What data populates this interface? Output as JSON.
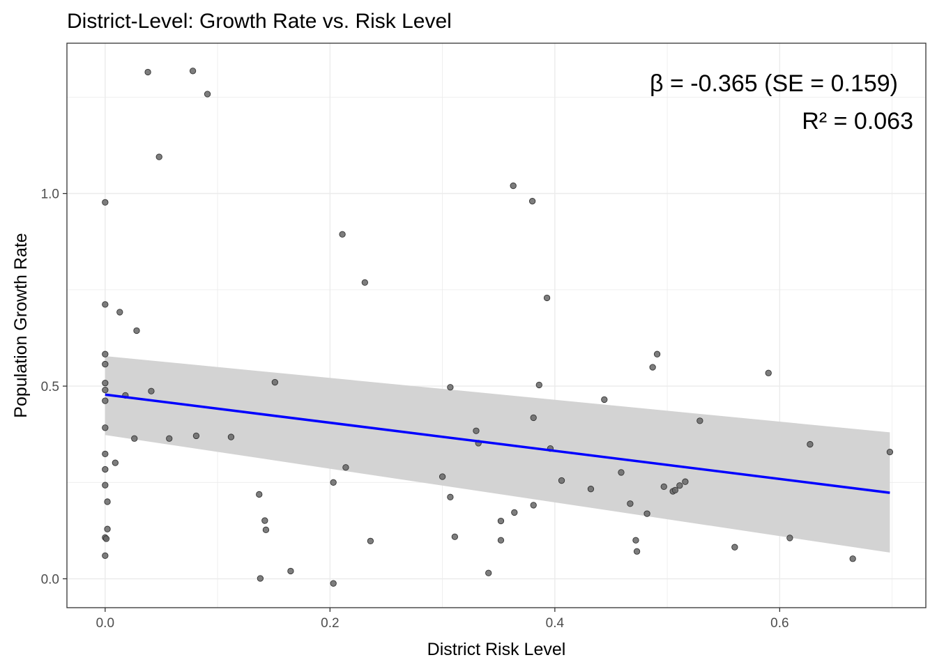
{
  "chart_data": {
    "type": "scatter",
    "title": "District-Level: Growth Rate vs. Risk Level",
    "xlabel": "District Risk Level",
    "ylabel": "Population Growth Rate",
    "xlim": [
      -0.034,
      0.73
    ],
    "ylim": [
      -0.075,
      1.39
    ],
    "x_ticks": [
      {
        "value": 0.0,
        "label": "0.0"
      },
      {
        "value": 0.2,
        "label": "0.2"
      },
      {
        "value": 0.4,
        "label": "0.4"
      },
      {
        "value": 0.6,
        "label": "0.6"
      }
    ],
    "y_ticks": [
      {
        "value": 0.0,
        "label": "0.0"
      },
      {
        "value": 0.5,
        "label": "0.5"
      },
      {
        "value": 1.0,
        "label": "1.0"
      }
    ],
    "grid": true,
    "annotations": [
      "β = -0.365 (SE = 0.159)",
      "R² = 0.063"
    ],
    "colors": {
      "point_fill": "#666666",
      "point_stroke": "#333333",
      "fit_line": "#0000ff",
      "confidence_band": "#d3d3d3",
      "grid": "#ebebeb",
      "panel_border": "#333333"
    },
    "fit": {
      "x_range": [
        0.0,
        0.698
      ],
      "intercept": 0.478,
      "slope": -0.365,
      "ci_lower": [
        0.373,
        0.068
      ],
      "ci_upper": [
        0.578,
        0.38
      ]
    },
    "points": [
      {
        "x": 0.038,
        "y": 1.315
      },
      {
        "x": 0.078,
        "y": 1.318
      },
      {
        "x": 0.091,
        "y": 1.258
      },
      {
        "x": 0.048,
        "y": 1.095
      },
      {
        "x": 0.0,
        "y": 0.977
      },
      {
        "x": 0.0,
        "y": 0.712
      },
      {
        "x": 0.013,
        "y": 0.692
      },
      {
        "x": 0.028,
        "y": 0.644
      },
      {
        "x": 0.0,
        "y": 0.583
      },
      {
        "x": 0.0,
        "y": 0.557
      },
      {
        "x": 0.0,
        "y": 0.508
      },
      {
        "x": 0.0,
        "y": 0.49
      },
      {
        "x": 0.0,
        "y": 0.462
      },
      {
        "x": 0.018,
        "y": 0.476
      },
      {
        "x": 0.041,
        "y": 0.487
      },
      {
        "x": 0.0,
        "y": 0.392
      },
      {
        "x": 0.026,
        "y": 0.364
      },
      {
        "x": 0.057,
        "y": 0.364
      },
      {
        "x": 0.081,
        "y": 0.371
      },
      {
        "x": 0.112,
        "y": 0.368
      },
      {
        "x": 0.0,
        "y": 0.324
      },
      {
        "x": 0.009,
        "y": 0.301
      },
      {
        "x": 0.0,
        "y": 0.284
      },
      {
        "x": 0.0,
        "y": 0.243
      },
      {
        "x": 0.002,
        "y": 0.2
      },
      {
        "x": 0.002,
        "y": 0.129
      },
      {
        "x": 0.0,
        "y": 0.107
      },
      {
        "x": 0.001,
        "y": 0.104
      },
      {
        "x": 0.0,
        "y": 0.06
      },
      {
        "x": 0.151,
        "y": 0.51
      },
      {
        "x": 0.137,
        "y": 0.219
      },
      {
        "x": 0.142,
        "y": 0.151
      },
      {
        "x": 0.143,
        "y": 0.127
      },
      {
        "x": 0.138,
        "y": 0.001
      },
      {
        "x": 0.165,
        "y": 0.02
      },
      {
        "x": 0.203,
        "y": -0.012
      },
      {
        "x": 0.211,
        "y": 0.894
      },
      {
        "x": 0.231,
        "y": 0.769
      },
      {
        "x": 0.214,
        "y": 0.289
      },
      {
        "x": 0.203,
        "y": 0.25
      },
      {
        "x": 0.236,
        "y": 0.098
      },
      {
        "x": 0.307,
        "y": 0.497
      },
      {
        "x": 0.33,
        "y": 0.384
      },
      {
        "x": 0.332,
        "y": 0.352
      },
      {
        "x": 0.3,
        "y": 0.265
      },
      {
        "x": 0.307,
        "y": 0.212
      },
      {
        "x": 0.311,
        "y": 0.109
      },
      {
        "x": 0.341,
        "y": 0.015
      },
      {
        "x": 0.352,
        "y": 0.15
      },
      {
        "x": 0.352,
        "y": 0.1
      },
      {
        "x": 0.364,
        "y": 0.172
      },
      {
        "x": 0.363,
        "y": 1.02
      },
      {
        "x": 0.38,
        "y": 0.98
      },
      {
        "x": 0.393,
        "y": 0.729
      },
      {
        "x": 0.386,
        "y": 0.503
      },
      {
        "x": 0.381,
        "y": 0.418
      },
      {
        "x": 0.396,
        "y": 0.338
      },
      {
        "x": 0.381,
        "y": 0.191
      },
      {
        "x": 0.406,
        "y": 0.255
      },
      {
        "x": 0.432,
        "y": 0.233
      },
      {
        "x": 0.444,
        "y": 0.465
      },
      {
        "x": 0.459,
        "y": 0.276
      },
      {
        "x": 0.467,
        "y": 0.195
      },
      {
        "x": 0.472,
        "y": 0.1
      },
      {
        "x": 0.473,
        "y": 0.071
      },
      {
        "x": 0.482,
        "y": 0.169
      },
      {
        "x": 0.487,
        "y": 0.549
      },
      {
        "x": 0.491,
        "y": 0.583
      },
      {
        "x": 0.497,
        "y": 0.239
      },
      {
        "x": 0.505,
        "y": 0.227
      },
      {
        "x": 0.507,
        "y": 0.23
      },
      {
        "x": 0.511,
        "y": 0.242
      },
      {
        "x": 0.516,
        "y": 0.252
      },
      {
        "x": 0.529,
        "y": 0.41
      },
      {
        "x": 0.56,
        "y": 0.082
      },
      {
        "x": 0.59,
        "y": 0.534
      },
      {
        "x": 0.609,
        "y": 0.106
      },
      {
        "x": 0.627,
        "y": 0.349
      },
      {
        "x": 0.665,
        "y": 0.052
      },
      {
        "x": 0.698,
        "y": 0.329
      }
    ]
  }
}
